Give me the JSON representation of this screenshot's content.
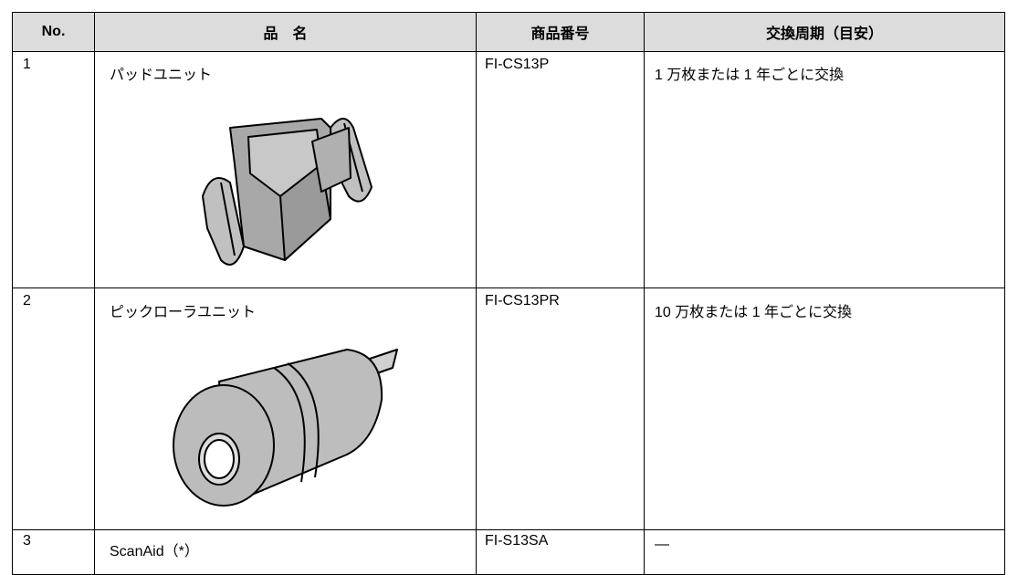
{
  "table": {
    "header": [
      "No.",
      "品　名",
      "商品番号",
      "交換周期（目安）"
    ],
    "rows": [
      [
        "1",
        "パッドユニット",
        "FI-CS13P",
        "1 万枚または 1 年ごとに交換"
      ],
      [
        "2",
        "ピックローラユニット",
        "FI-CS13PR",
        "10 万枚または 1 年ごとに交換"
      ],
      [
        "3",
        "ScanAid（*）",
        "FI-S13SA",
        "—"
      ]
    ]
  }
}
